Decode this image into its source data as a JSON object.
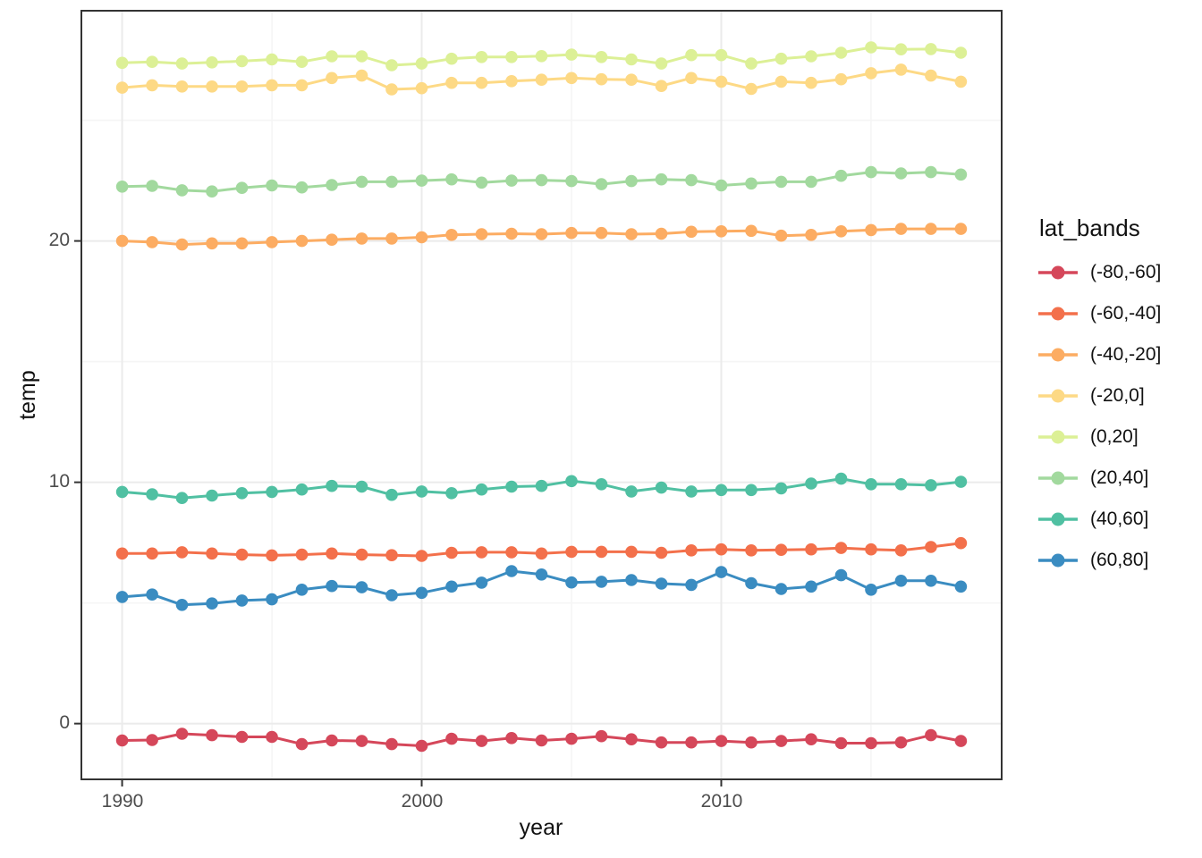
{
  "chart_data": {
    "type": "line",
    "title": "",
    "xlabel": "year",
    "ylabel": "temp",
    "legend_title": "lat_bands",
    "legend_position": "right",
    "grid": true,
    "x_ticks": [
      1990,
      2000,
      2010
    ],
    "y_ticks": [
      0,
      10,
      20
    ],
    "x_minor_ticks": [
      1995,
      2005,
      2015
    ],
    "y_minor_ticks": [
      5,
      15,
      25
    ],
    "xlim": [
      1988.64,
      2019.36
    ],
    "ylim": [
      -2.31,
      29.54
    ],
    "x": [
      1990,
      1991,
      1992,
      1993,
      1994,
      1995,
      1996,
      1997,
      1998,
      1999,
      2000,
      2001,
      2002,
      2003,
      2004,
      2005,
      2006,
      2007,
      2008,
      2009,
      2010,
      2011,
      2012,
      2013,
      2014,
      2015,
      2016,
      2017,
      2018
    ],
    "series": [
      {
        "name": "(-80,-60]",
        "color": "#d5475a",
        "values": [
          -0.7,
          -0.68,
          -0.42,
          -0.48,
          -0.55,
          -0.55,
          -0.85,
          -0.7,
          -0.72,
          -0.85,
          -0.92,
          -0.63,
          -0.72,
          -0.6,
          -0.7,
          -0.63,
          -0.52,
          -0.65,
          -0.78,
          -0.78,
          -0.72,
          -0.78,
          -0.72,
          -0.65,
          -0.81,
          -0.81,
          -0.78,
          -0.48,
          -0.72
        ]
      },
      {
        "name": "(-60,-40]",
        "color": "#f3704b",
        "values": [
          7.05,
          7.05,
          7.1,
          7.05,
          7.0,
          6.97,
          7.0,
          7.05,
          7.0,
          6.98,
          6.95,
          7.08,
          7.1,
          7.1,
          7.05,
          7.12,
          7.12,
          7.12,
          7.08,
          7.18,
          7.22,
          7.18,
          7.2,
          7.22,
          7.28,
          7.22,
          7.18,
          7.32,
          7.48
        ]
      },
      {
        "name": "(-40,-20]",
        "color": "#fcac62",
        "values": [
          20.0,
          19.95,
          19.85,
          19.9,
          19.9,
          19.95,
          20.0,
          20.05,
          20.1,
          20.1,
          20.15,
          20.25,
          20.28,
          20.3,
          20.28,
          20.33,
          20.33,
          20.28,
          20.3,
          20.38,
          20.4,
          20.42,
          20.22,
          20.25,
          20.4,
          20.45,
          20.5,
          20.5,
          20.5
        ]
      },
      {
        "name": "(-20,0]",
        "color": "#fdd985",
        "values": [
          26.35,
          26.45,
          26.4,
          26.4,
          26.4,
          26.45,
          26.45,
          26.75,
          26.85,
          26.28,
          26.33,
          26.55,
          26.55,
          26.62,
          26.68,
          26.75,
          26.7,
          26.68,
          26.42,
          26.75,
          26.6,
          26.3,
          26.6,
          26.55,
          26.7,
          26.95,
          27.1,
          26.85,
          26.6
        ]
      },
      {
        "name": "(0,20]",
        "color": "#dcf096",
        "values": [
          27.38,
          27.42,
          27.35,
          27.4,
          27.45,
          27.52,
          27.42,
          27.65,
          27.65,
          27.28,
          27.35,
          27.55,
          27.62,
          27.62,
          27.66,
          27.72,
          27.62,
          27.52,
          27.35,
          27.7,
          27.7,
          27.35,
          27.55,
          27.65,
          27.8,
          28.02,
          27.94,
          27.95,
          27.8
        ]
      },
      {
        "name": "(20,40]",
        "color": "#a2d99e",
        "values": [
          22.25,
          22.28,
          22.1,
          22.05,
          22.2,
          22.3,
          22.22,
          22.32,
          22.45,
          22.45,
          22.5,
          22.55,
          22.42,
          22.5,
          22.52,
          22.48,
          22.35,
          22.48,
          22.55,
          22.52,
          22.3,
          22.38,
          22.45,
          22.45,
          22.7,
          22.85,
          22.8,
          22.85,
          22.75
        ]
      },
      {
        "name": "(40,60]",
        "color": "#50c0a2",
        "values": [
          9.6,
          9.5,
          9.35,
          9.45,
          9.55,
          9.6,
          9.7,
          9.85,
          9.82,
          9.48,
          9.62,
          9.55,
          9.7,
          9.82,
          9.85,
          10.05,
          9.92,
          9.62,
          9.78,
          9.62,
          9.68,
          9.68,
          9.75,
          9.95,
          10.15,
          9.92,
          9.92,
          9.88,
          10.02
        ]
      },
      {
        "name": "(60,80]",
        "color": "#3a8cc1",
        "values": [
          5.25,
          5.35,
          4.92,
          4.98,
          5.1,
          5.15,
          5.55,
          5.7,
          5.65,
          5.32,
          5.42,
          5.68,
          5.84,
          6.32,
          6.18,
          5.85,
          5.88,
          5.95,
          5.8,
          5.75,
          6.28,
          5.82,
          5.58,
          5.68,
          6.15,
          5.55,
          5.92,
          5.92,
          5.68
        ]
      }
    ],
    "style": {
      "panel_border": "#333333",
      "major_grid": "#ebebeb",
      "minor_grid": "#f5f5f5",
      "tick_color": "#333333",
      "tick_text_color": "#4d4d4d"
    }
  }
}
